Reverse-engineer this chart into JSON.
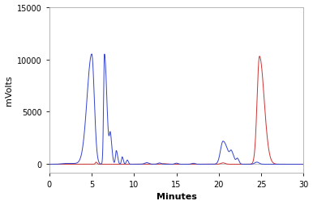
{
  "title": "",
  "xlabel": "Minutes",
  "ylabel": "mVolts",
  "xlim": [
    0,
    30
  ],
  "ylim": [
    -800,
    15000
  ],
  "yticks": [
    0,
    5000,
    10000,
    15000
  ],
  "xticks": [
    0,
    5,
    10,
    15,
    20,
    25,
    30
  ],
  "blue_color": "#3344cc",
  "red_color": "#cc3333",
  "background": "#ffffff",
  "figsize": [
    3.86,
    2.55
  ],
  "dpi": 100
}
